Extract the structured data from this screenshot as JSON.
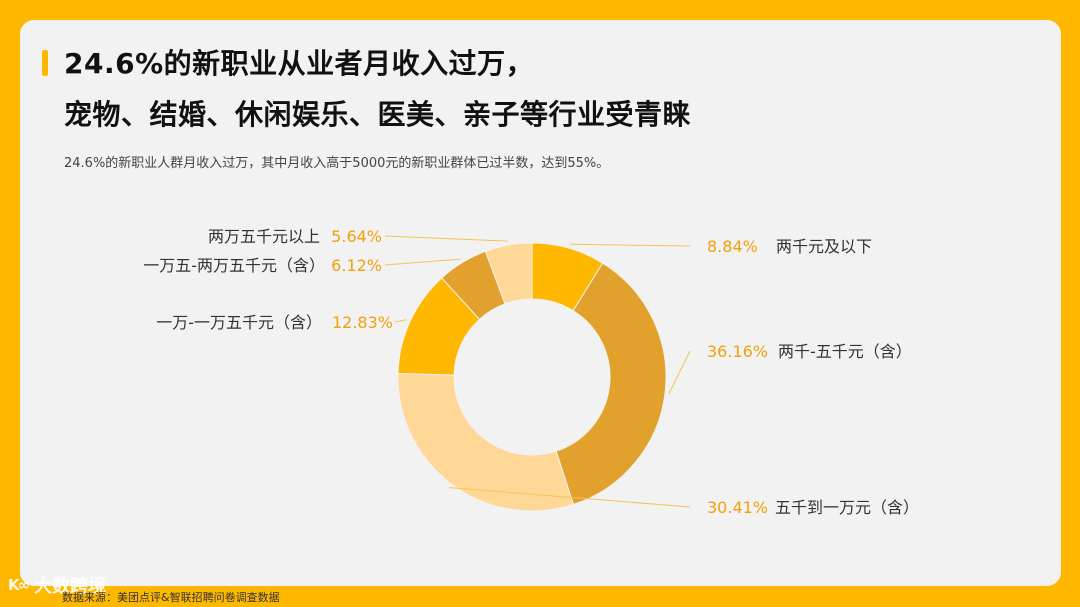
{
  "header": {
    "title_line1": "24.6%的新职业从业者月收入过万，",
    "title_line2": "宠物、结婚、休闲娱乐、医美、亲子等行业受青睐",
    "subtitle": "24.6%的新职业人群月收入过万，其中月收入高于5000元的新职业群体已过半数，达到55%。"
  },
  "footer": {
    "source": "数据来源：美团点评&智联招聘问卷调查数据",
    "watermark": "大数跨境",
    "watermark_mark": "K∞"
  },
  "colors": {
    "accent": "#FFB800",
    "label_percent": "#F2A00C",
    "leader_line": "#F5C451"
  },
  "chart_data": {
    "type": "pie",
    "donut": true,
    "title": "",
    "categories": [
      "两千元及以下",
      "两千-五千元（含）",
      "五千到一万元（含）",
      "一万-一万五千元（含）",
      "一万五-两万五千元（含）",
      "两万五千元以上"
    ],
    "values": [
      8.84,
      36.16,
      30.41,
      12.83,
      6.12,
      5.64
    ],
    "labels": [
      "8.84%",
      "36.16%",
      "30.41%",
      "12.83%",
      "6.12%",
      "5.64%"
    ],
    "slice_colors": [
      "#FFB800",
      "#E1A12C",
      "#FFD898",
      "#FFB800",
      "#E1A12C",
      "#FFD898"
    ],
    "unit": "%"
  }
}
